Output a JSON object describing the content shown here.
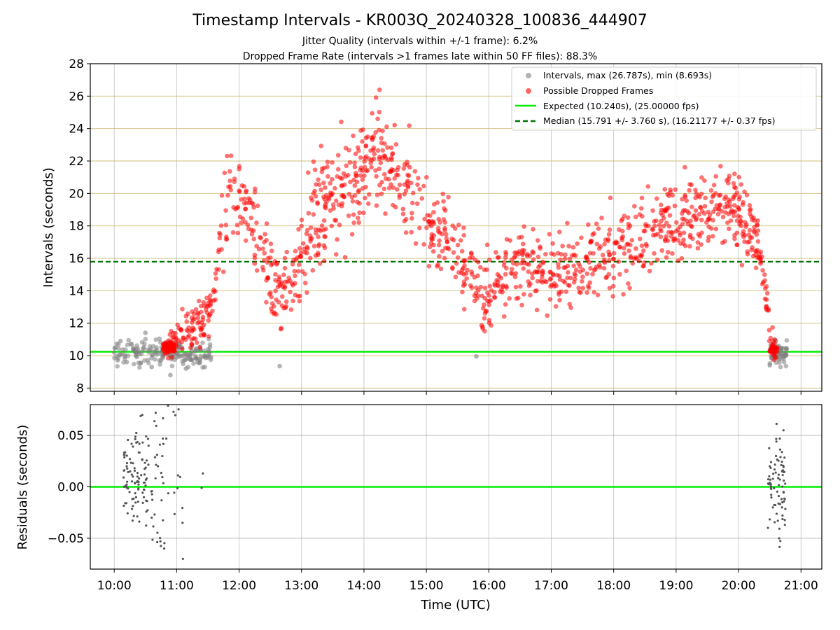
{
  "figure": {
    "title": "Timestamp Intervals - KR003Q_20240328_100836_444907",
    "subtitle_1": "Jitter Quality (intervals within +/-1 frame): 6.2%",
    "subtitle_2": "Dropped Frame Rate (intervals >1 frames late within 50 FF files): 88.3%"
  },
  "colors": {
    "intervals": "#808080",
    "dropped": "#ff0000",
    "expected": "#00ee00",
    "median": "#007700",
    "residuals": "#555555"
  },
  "chart_data": [
    {
      "type": "scatter",
      "ylabel": "Intervals (seconds)",
      "ylim": [
        7.8,
        28
      ],
      "yticks": [
        "8",
        "10",
        "12",
        "14",
        "16",
        "18",
        "20",
        "22",
        "24",
        "26",
        "28"
      ],
      "xlim": [
        "09:37",
        "21:20"
      ],
      "grid": true,
      "legend_position": "top-right",
      "legend": [
        "Intervals, max (26.787s), min (8.693s)",
        "Possible Dropped Frames",
        "Expected (10.240s), (25.00000 fps)",
        "Median (15.791 +/- 3.760 s), (16.21177 +/- 0.37 fps)"
      ],
      "expected_interval": 10.24,
      "median_interval": 15.791,
      "max_interval": 26.787,
      "min_interval": 8.693,
      "series": [
        {
          "name": "Intervals, max (26.787s), min (8.693s)",
          "description_points_hours_utc": [
            [
              10.0,
              10.2
            ],
            [
              10.1,
              10.9
            ],
            [
              10.2,
              9.6
            ],
            [
              10.35,
              10.4
            ],
            [
              10.5,
              11.4
            ],
            [
              10.6,
              9.3
            ],
            [
              10.75,
              10.1
            ],
            [
              10.9,
              8.8
            ],
            [
              11.0,
              9.9
            ],
            [
              11.15,
              9.2
            ],
            [
              11.3,
              10.3
            ],
            [
              11.45,
              9.3
            ],
            [
              11.55,
              9.9
            ],
            [
              12.65,
              9.35
            ],
            [
              15.8,
              9.95
            ],
            [
              20.5,
              9.4
            ],
            [
              20.6,
              10.9
            ],
            [
              20.75,
              10.0
            ]
          ]
        },
        {
          "name": "Possible Dropped Frames",
          "anchors_hours_utc": [
            [
              10.82,
              10.5
            ],
            [
              11.05,
              11.0
            ],
            [
              11.3,
              11.8
            ],
            [
              11.55,
              12.8
            ],
            [
              11.7,
              16.5
            ],
            [
              11.85,
              20.5
            ],
            [
              12.0,
              20.0
            ],
            [
              12.2,
              18.5
            ],
            [
              12.35,
              16.0
            ],
            [
              12.5,
              14.5
            ],
            [
              12.7,
              13.5
            ],
            [
              12.9,
              14.5
            ],
            [
              13.0,
              16.0
            ],
            [
              13.2,
              18.5
            ],
            [
              13.4,
              20.0
            ],
            [
              13.6,
              19.5
            ],
            [
              13.85,
              21.0
            ],
            [
              14.1,
              22.5
            ],
            [
              14.3,
              22.0
            ],
            [
              14.5,
              21.5
            ],
            [
              14.75,
              20.0
            ],
            [
              15.0,
              18.0
            ],
            [
              15.25,
              17.5
            ],
            [
              15.5,
              16.5
            ],
            [
              15.7,
              15.0
            ],
            [
              15.9,
              13.5
            ],
            [
              16.1,
              14.5
            ],
            [
              16.5,
              15.5
            ],
            [
              17.0,
              15.0
            ],
            [
              17.5,
              15.5
            ],
            [
              18.0,
              16.5
            ],
            [
              18.5,
              17.5
            ],
            [
              19.0,
              18.5
            ],
            [
              19.5,
              19.0
            ],
            [
              19.8,
              19.5
            ],
            [
              20.1,
              18.5
            ],
            [
              20.3,
              17.0
            ],
            [
              20.42,
              14.5
            ],
            [
              20.5,
              11.0
            ],
            [
              20.6,
              10.4
            ]
          ]
        }
      ]
    },
    {
      "type": "scatter",
      "ylabel": "Residuals (seconds)",
      "xlabel": "Time (UTC)",
      "ylim": [
        -0.08,
        0.08
      ],
      "yticks": [
        "−0.05",
        "0.00",
        "0.05"
      ],
      "xticks": [
        "10:00",
        "11:00",
        "12:00",
        "13:00",
        "14:00",
        "15:00",
        "16:00",
        "17:00",
        "18:00",
        "19:00",
        "20:00",
        "21:00"
      ],
      "zero_line": 0.0,
      "series": [
        {
          "name": "",
          "anchors_hours_utc": [
            [
              10.2,
              0.02
            ],
            [
              10.3,
              0.01
            ],
            [
              10.35,
              -0.01
            ],
            [
              10.45,
              0.07
            ],
            [
              10.55,
              0.04
            ],
            [
              10.6,
              -0.03
            ],
            [
              10.7,
              0.02
            ],
            [
              10.8,
              -0.06
            ],
            [
              10.95,
              0.073
            ],
            [
              11.1,
              -0.07
            ],
            [
              11.42,
              0.013
            ],
            [
              11.4,
              -0.001
            ],
            [
              20.5,
              0.02
            ],
            [
              20.55,
              -0.02
            ],
            [
              20.6,
              0.03
            ],
            [
              20.65,
              -0.05
            ],
            [
              20.72,
              0.055
            ]
          ]
        }
      ]
    }
  ]
}
